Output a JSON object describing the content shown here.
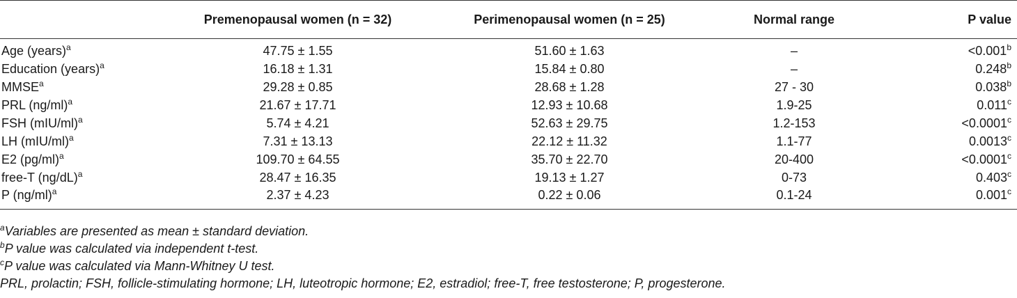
{
  "table": {
    "headers": [
      "",
      "Premenopausal women (n = 32)",
      "Perimenopausal women (n = 25)",
      "Normal range",
      "P value"
    ],
    "rows": [
      {
        "variable": "Age (years)",
        "var_sup": "a",
        "pre": "47.75 ± 1.55",
        "peri": "51.60 ± 1.63",
        "range": "–",
        "p": "<0.001",
        "p_sup": "b"
      },
      {
        "variable": "Education (years)",
        "var_sup": "a",
        "pre": "16.18 ± 1.31",
        "peri": "15.84 ± 0.80",
        "range": "–",
        "p": "0.248",
        "p_sup": "b"
      },
      {
        "variable": "MMSE",
        "var_sup": "a",
        "pre": "29.28 ± 0.85",
        "peri": "28.68 ± 1.28",
        "range": "27 - 30",
        "p": "0.038",
        "p_sup": "b"
      },
      {
        "variable": "PRL (ng/ml)",
        "var_sup": "a",
        "pre": "21.67 ± 17.71",
        "peri": "12.93 ± 10.68",
        "range": "1.9-25",
        "p": "0.011",
        "p_sup": "c"
      },
      {
        "variable": "FSH (mIU/ml)",
        "var_sup": "a",
        "pre": "5.74 ± 4.21",
        "peri": "52.63 ± 29.75",
        "range": "1.2-153",
        "p": "<0.0001",
        "p_sup": "c"
      },
      {
        "variable": "LH (mIU/ml)",
        "var_sup": "a",
        "pre": "7.31 ± 13.13",
        "peri": "22.12 ± 11.32",
        "range": "1.1-77",
        "p": "0.0013",
        "p_sup": "c"
      },
      {
        "variable": "E2 (pg/ml)",
        "var_sup": "a",
        "pre": "109.70 ± 64.55",
        "peri": "35.70 ± 22.70",
        "range": "20-400",
        "p": "<0.0001",
        "p_sup": "c"
      },
      {
        "variable": "free-T (ng/dL)",
        "var_sup": "a",
        "pre": "28.47 ± 16.35",
        "peri": "19.13 ± 1.27",
        "range": "0-73",
        "p": "0.403",
        "p_sup": "c"
      },
      {
        "variable": "P (ng/ml)",
        "var_sup": "a",
        "pre": "2.37 ± 4.23",
        "peri": "0.22 ± 0.06",
        "range": "0.1-24",
        "p": "0.001",
        "p_sup": "c"
      }
    ]
  },
  "footnotes": [
    {
      "sup": "a",
      "text": "Variables are presented as mean ± standard deviation."
    },
    {
      "sup": "b",
      "text": "P value was calculated via independent t-test."
    },
    {
      "sup": "c",
      "text": "P value was calculated via Mann-Whitney U test."
    },
    {
      "sup": "",
      "text": "PRL, prolactin; FSH, follicle-stimulating hormone; LH, luteotropic hormone; E2, estradiol; free-T, free testosterone; P, progesterone."
    }
  ]
}
